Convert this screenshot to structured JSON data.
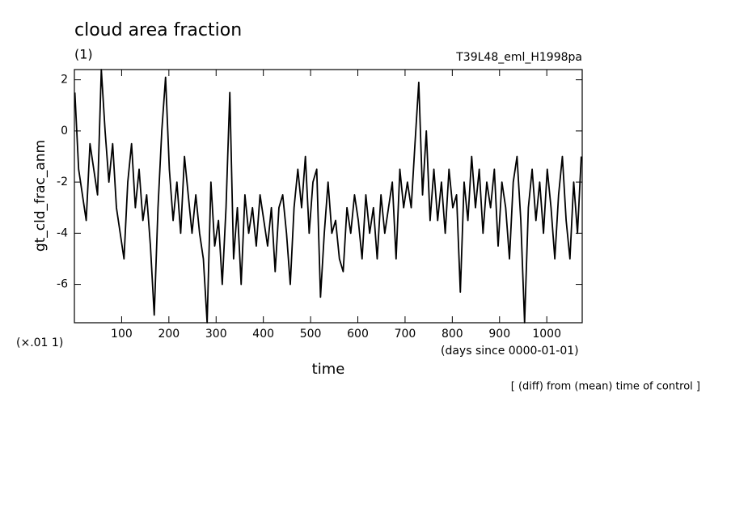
{
  "chart_data": {
    "type": "line",
    "title": "cloud area fraction",
    "subtitle": "(1)",
    "run_label": "T39L48_eml_H1998pa",
    "ylabel": "gt_cld_frac_anm",
    "y_unit_label": "(×.01 1)",
    "x_unit_label": "(days since 0000-01-01)",
    "xlabel": "time",
    "footnote": "[ (diff) from (mean) time of control ]",
    "color": "#000000",
    "xlim": [
      0,
      1075
    ],
    "ylim": [
      -7.5,
      2.4
    ],
    "xticks": [
      100,
      200,
      300,
      400,
      500,
      600,
      700,
      800,
      900,
      1000
    ],
    "yticks": [
      2,
      0,
      -2,
      -4,
      -6
    ],
    "x": [
      1,
      9,
      17,
      25,
      33,
      41,
      49,
      57,
      65,
      73,
      81,
      89,
      97,
      105,
      113,
      121,
      129,
      137,
      145,
      153,
      161,
      169,
      177,
      185,
      193,
      201,
      209,
      217,
      225,
      233,
      241,
      249,
      257,
      265,
      273,
      281,
      289,
      297,
      305,
      313,
      321,
      329,
      337,
      345,
      353,
      361,
      369,
      377,
      385,
      393,
      401,
      409,
      417,
      425,
      433,
      441,
      449,
      457,
      465,
      473,
      481,
      489,
      497,
      505,
      513,
      521,
      529,
      537,
      545,
      553,
      561,
      569,
      577,
      585,
      593,
      601,
      609,
      617,
      625,
      633,
      641,
      649,
      657,
      665,
      673,
      681,
      689,
      697,
      705,
      713,
      721,
      729,
      737,
      745,
      753,
      761,
      769,
      777,
      785,
      793,
      801,
      809,
      817,
      825,
      833,
      841,
      849,
      857,
      865,
      873,
      881,
      889,
      897,
      905,
      913,
      921,
      929,
      937,
      945,
      953,
      961,
      969,
      977,
      985,
      993,
      1001,
      1009,
      1017,
      1025,
      1033,
      1041,
      1049,
      1057,
      1065,
      1073
    ],
    "values": [
      1.5,
      -1.5,
      -2.5,
      -3.5,
      -0.5,
      -1.5,
      -2.5,
      2.4,
      0,
      -2,
      -0.5,
      -3,
      -4,
      -5,
      -2,
      -0.5,
      -3,
      -1.5,
      -3.5,
      -2.5,
      -4.5,
      -7.2,
      -3,
      0,
      2.1,
      -1.5,
      -3.5,
      -2,
      -4,
      -1,
      -2.5,
      -4,
      -2.5,
      -4,
      -5,
      -7.5,
      -2,
      -4.5,
      -3.5,
      -6,
      -3,
      1.5,
      -5,
      -3,
      -6,
      -2.5,
      -4,
      -3,
      -4.5,
      -2.5,
      -3.5,
      -4.5,
      -3,
      -5.5,
      -3,
      -2.5,
      -4,
      -6,
      -3,
      -1.5,
      -3,
      -1,
      -4,
      -2,
      -1.5,
      -6.5,
      -4,
      -2,
      -4,
      -3.5,
      -5,
      -5.5,
      -3,
      -4,
      -2.5,
      -3.5,
      -5,
      -2.5,
      -4,
      -3,
      -5,
      -2.5,
      -4,
      -3,
      -2,
      -5,
      -1.5,
      -3,
      -2,
      -3,
      -0.5,
      1.9,
      -2.5,
      0,
      -3.5,
      -1.5,
      -3.5,
      -2,
      -4,
      -1.5,
      -3,
      -2.5,
      -6.3,
      -2,
      -3.5,
      -1,
      -3,
      -1.5,
      -4,
      -2,
      -3,
      -1.5,
      -4.5,
      -2,
      -3,
      -5,
      -2,
      -1,
      -3.5,
      -7.5,
      -3,
      -1.5,
      -3.5,
      -2,
      -4,
      -1.5,
      -3,
      -5,
      -2.5,
      -1,
      -3.5,
      -5,
      -2,
      -4,
      -1
    ]
  }
}
